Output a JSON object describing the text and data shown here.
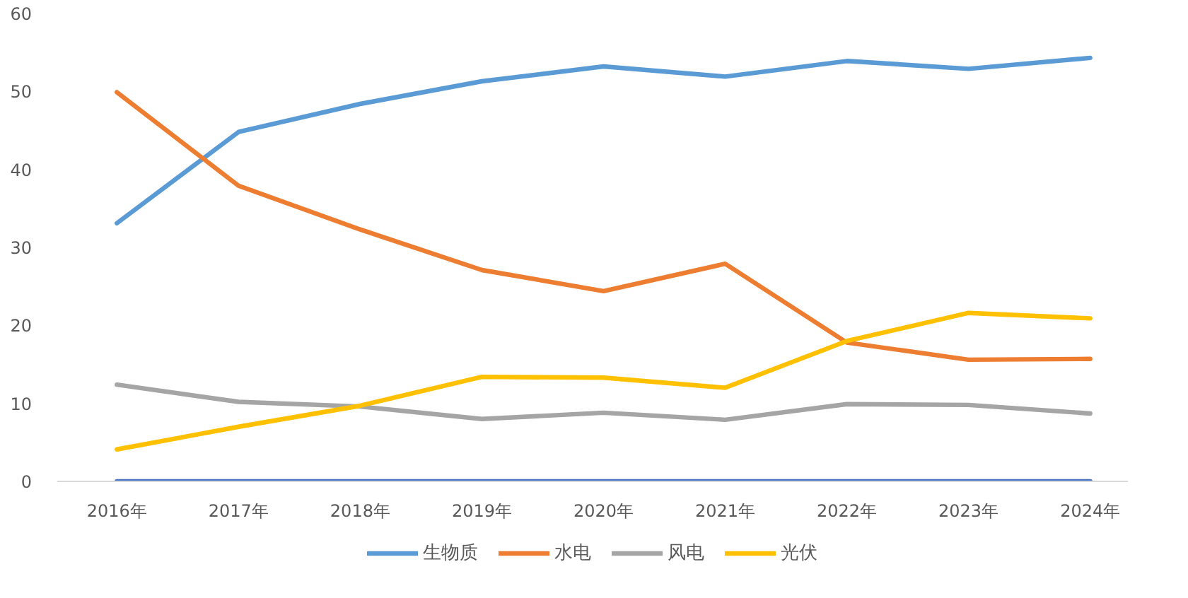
{
  "chart_data": {
    "type": "line",
    "categories": [
      "2016年",
      "2017年",
      "2018年",
      "2019年",
      "2020年",
      "2021年",
      "2022年",
      "2023年",
      "2024年"
    ],
    "ylim": [
      0,
      60
    ],
    "yticks": [
      0,
      10,
      20,
      30,
      40,
      50,
      60
    ],
    "grid": false,
    "legend": "bottom",
    "series": [
      {
        "name": "生物质",
        "color": "#5b9bd5",
        "values": [
          33.1,
          44.8,
          48.4,
          51.3,
          53.2,
          51.9,
          53.9,
          52.9,
          54.3
        ]
      },
      {
        "name": "水电",
        "color": "#ed7d31",
        "values": [
          49.9,
          37.9,
          32.3,
          27.1,
          24.4,
          27.9,
          17.8,
          15.6,
          15.7
        ]
      },
      {
        "name": "风电",
        "color": "#a5a5a5",
        "values": [
          12.4,
          10.2,
          9.6,
          8.0,
          8.8,
          7.9,
          9.9,
          9.8,
          8.7
        ]
      },
      {
        "name": "光伏",
        "color": "#ffc000",
        "values": [
          4.1,
          7.0,
          9.7,
          13.4,
          13.3,
          12.0,
          18.0,
          21.6,
          20.9
        ]
      },
      {
        "color": "#4472c4",
        "values": [
          0,
          0,
          0,
          0,
          0,
          0,
          0,
          0,
          0
        ]
      }
    ]
  }
}
